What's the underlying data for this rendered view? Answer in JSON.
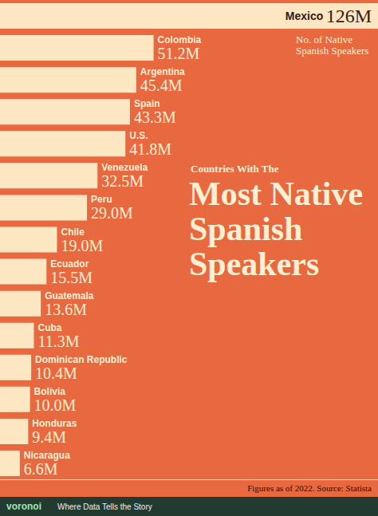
{
  "chart_data": {
    "type": "bar",
    "orientation": "horizontal",
    "title": "Most Native Spanish Speakers",
    "subtitle": "Countries With The",
    "annotations": [
      "No. of Native Spanish Speakers"
    ],
    "source": "Figures as of 2022. Source: Statista",
    "categories": [
      "Mexico",
      "Colombia",
      "Argentina",
      "Spain",
      "U.S.",
      "Venezuela",
      "Peru",
      "Chile",
      "Ecuador",
      "Guatemala",
      "Cuba",
      "Dominican Republic",
      "Bolivia",
      "Honduras",
      "Nicaragua"
    ],
    "values": [
      126,
      51.2,
      45.4,
      43.3,
      41.8,
      32.5,
      29.0,
      19.0,
      15.5,
      13.6,
      11.3,
      10.4,
      10.0,
      9.4,
      6.6
    ],
    "value_labels": [
      "126M",
      "51.2M",
      "45.4M",
      "43.3M",
      "41.8M",
      "32.5M",
      "29.0M",
      "19.0M",
      "15.5M",
      "13.6M",
      "11.3M",
      "10.4M",
      "10.0M",
      "9.4M",
      "6.6M"
    ],
    "color": "#fde6c2",
    "xlim": [
      0,
      126
    ],
    "grid": false,
    "tick_labels": false,
    "data_labels": true
  },
  "footer": {
    "brand": "voronoi",
    "tagline": "Where Data Tells the Story"
  }
}
